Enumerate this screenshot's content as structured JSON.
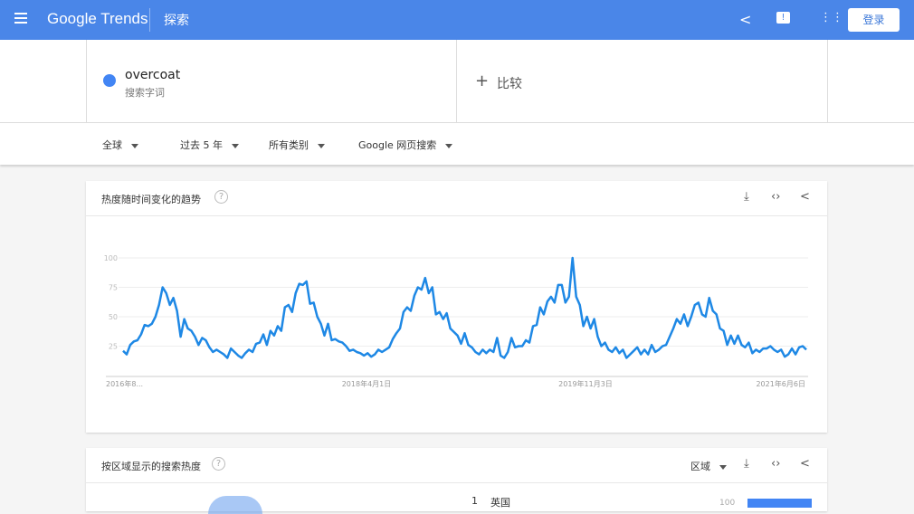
{
  "header": {
    "logo": "Google Trends",
    "section": "探索",
    "login": "登录"
  },
  "search": {
    "term": "overcoat",
    "term_sub": "搜索字词",
    "compare": "比较",
    "term_color": "#4285f4"
  },
  "filters": [
    "全球",
    "过去 5 年",
    "所有类别",
    "Google 网页搜索"
  ],
  "interest_card": {
    "title": "热度随时间变化的趋势",
    "help": "?"
  },
  "chart_data": {
    "type": "line",
    "title": "",
    "ylim": [
      0,
      100
    ],
    "yticks": [
      "100",
      "75",
      "50",
      "25"
    ],
    "xticks": [
      "2016年8...",
      "2018年4月1日",
      "2019年11月3日",
      "2021年6月6日"
    ],
    "grid": true,
    "color": "#1e88e5",
    "series": [
      {
        "values": [
          21,
          18,
          26,
          29,
          30,
          35,
          43,
          42,
          44,
          50,
          60,
          75,
          70,
          60,
          66,
          55,
          33,
          48,
          40,
          38,
          33,
          26,
          32,
          30,
          24,
          20,
          22,
          20,
          18,
          15,
          23,
          20,
          17,
          15,
          19,
          22,
          20,
          27,
          28,
          35,
          26,
          38,
          34,
          42,
          38,
          58,
          60,
          54,
          70,
          78,
          77,
          80,
          61,
          62,
          50,
          44,
          34,
          44,
          30,
          31,
          29,
          28,
          25,
          21,
          22,
          20,
          19,
          17,
          19,
          16,
          18,
          22,
          20,
          22,
          24,
          31,
          36,
          40,
          54,
          58,
          55,
          68,
          75,
          73,
          83,
          70,
          75,
          52,
          54,
          48,
          53,
          40,
          37,
          34,
          27,
          36,
          26,
          24,
          20,
          18,
          22,
          19,
          22,
          20,
          32,
          17,
          15,
          20,
          32,
          24,
          25,
          25,
          30,
          28,
          42,
          43,
          58,
          52,
          63,
          67,
          62,
          77,
          77,
          62,
          67,
          100,
          67,
          60,
          42,
          50,
          40,
          48,
          33,
          25,
          28,
          22,
          20,
          24,
          19,
          22,
          15,
          18,
          21,
          24,
          18,
          22,
          18,
          26,
          20,
          22,
          25,
          26,
          33,
          40,
          48,
          44,
          52,
          42,
          50,
          60,
          62,
          52,
          50,
          66,
          55,
          52,
          40,
          38,
          26,
          34,
          27,
          34,
          26,
          24,
          28,
          19,
          22,
          20,
          23,
          23,
          25,
          22,
          20,
          22,
          16,
          18,
          23,
          18,
          24,
          25,
          22
        ]
      }
    ]
  },
  "region_card": {
    "title": "按区域显示的搜索热度",
    "help": "?",
    "dropdown": "区域",
    "rows": [
      {
        "rank": "1",
        "name": "英国",
        "value": "100"
      }
    ]
  }
}
